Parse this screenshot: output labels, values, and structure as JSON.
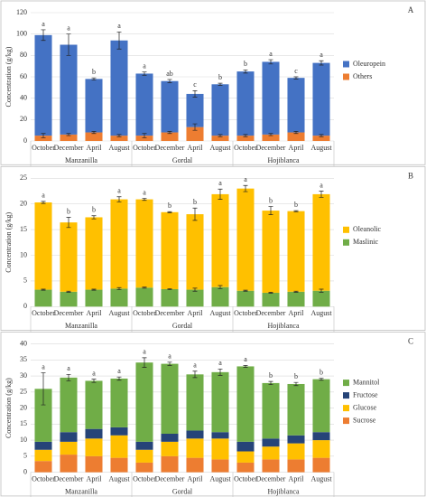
{
  "chart_data": [
    {
      "type": "bar",
      "stacked": true,
      "panel": "A",
      "ylabel": "Concentration (g/kg)",
      "categories": [
        "October",
        "December",
        "April",
        "August",
        "October",
        "December",
        "April",
        "August",
        "October",
        "December",
        "April",
        "August"
      ],
      "groups": [
        "Manzanilla",
        "Gordal",
        "Hojiblanca"
      ],
      "ylim": [
        0,
        120
      ],
      "yticks": [
        0,
        20,
        40,
        60,
        80,
        100,
        120
      ],
      "letters": [
        "a",
        "a",
        "b",
        "a",
        "a",
        "ab",
        "c",
        "b",
        "b",
        "a",
        "c",
        "a"
      ],
      "series": [
        {
          "name": "Others",
          "color": "#ed7d31",
          "values": [
            5,
            6,
            8,
            5,
            5,
            8,
            13,
            5,
            5,
            6,
            8,
            5
          ],
          "errors": [
            2,
            1,
            1,
            1,
            2,
            1,
            3,
            1,
            1,
            1,
            1,
            1
          ]
        },
        {
          "name": "Oleuropein",
          "color": "#4472c4",
          "values": [
            94,
            84,
            50,
            89,
            58,
            48,
            31,
            48,
            60,
            68,
            51,
            68
          ],
          "errors": [
            5,
            10,
            1,
            8,
            1.5,
            1.5,
            3,
            1,
            1.5,
            2,
            1,
            2
          ]
        }
      ]
    },
    {
      "type": "bar",
      "stacked": true,
      "panel": "B",
      "ylabel": "Concentration (g/kg)",
      "categories": [
        "October",
        "December",
        "April",
        "August",
        "October",
        "December",
        "April",
        "August",
        "October",
        "December",
        "April",
        "August"
      ],
      "groups": [
        "Manzanilla",
        "Gordal",
        "Hojiblanca"
      ],
      "ylim": [
        0,
        25
      ],
      "yticks": [
        0,
        5,
        10,
        15,
        20,
        25
      ],
      "letters": [
        "a",
        "b",
        "b",
        "a",
        "a",
        "b",
        "b",
        "a",
        "a",
        "b",
        "b",
        "a"
      ],
      "series": [
        {
          "name": "Maslinic",
          "color": "#70ad47",
          "values": [
            3.3,
            2.9,
            3.3,
            3.5,
            3.7,
            3.4,
            3.3,
            3.8,
            3.1,
            2.7,
            2.9,
            3.1
          ],
          "errors": [
            0.1,
            0.1,
            0.1,
            0.2,
            0.1,
            0.1,
            0.3,
            0.3,
            0.1,
            0.1,
            0.1,
            0.3
          ]
        },
        {
          "name": "Oleanolic",
          "color": "#ffc000",
          "values": [
            17.0,
            13.5,
            14.1,
            17.4,
            17.2,
            15.0,
            14.7,
            18.1,
            19.9,
            16.0,
            15.7,
            18.8
          ],
          "errors": [
            0.2,
            1.0,
            0.3,
            0.5,
            0.2,
            0.1,
            1.2,
            1.0,
            0.6,
            0.8,
            0.1,
            0.6
          ]
        }
      ]
    },
    {
      "type": "bar",
      "stacked": true,
      "panel": "C",
      "ylabel": "Concentration (g/kg)",
      "categories": [
        "October",
        "December",
        "April",
        "August",
        "October",
        "December",
        "April",
        "August",
        "October",
        "December",
        "April",
        "August"
      ],
      "groups": [
        "Manzanilla",
        "Gordal",
        "Hojiblanca"
      ],
      "ylim": [
        0,
        40
      ],
      "yticks": [
        0,
        5,
        10,
        15,
        20,
        25,
        30,
        35,
        40
      ],
      "letters": [
        "a",
        "a",
        "a",
        "a",
        "a",
        "a",
        "a",
        "a",
        "a",
        "b",
        "b",
        "b"
      ],
      "series": [
        {
          "name": "Sucrose",
          "color": "#ed7d31",
          "values": [
            3.5,
            5.5,
            5,
            4.5,
            3,
            5,
            4.5,
            4,
            3,
            4,
            4,
            4.5
          ]
        },
        {
          "name": "Glucose",
          "color": "#ffc000",
          "values": [
            3.5,
            4,
            5.5,
            7,
            4,
            4.5,
            6,
            6.5,
            3.5,
            4,
            5,
            5.5
          ]
        },
        {
          "name": "Fructose",
          "color": "#264478",
          "values": [
            2.5,
            3,
            3,
            2.5,
            2.5,
            2.5,
            2.5,
            2,
            3,
            2.5,
            2.5,
            2.5
          ]
        },
        {
          "name": "Mannitol",
          "color": "#70ad47",
          "values": [
            16.5,
            17,
            15,
            15.2,
            24.7,
            21.8,
            17.5,
            18.7,
            23.5,
            17.3,
            16,
            16.5
          ],
          "errors": [
            5,
            1,
            0.5,
            0.5,
            1.5,
            0.5,
            1,
            1,
            0.3,
            0.5,
            0.5,
            0.3
          ]
        }
      ]
    }
  ]
}
